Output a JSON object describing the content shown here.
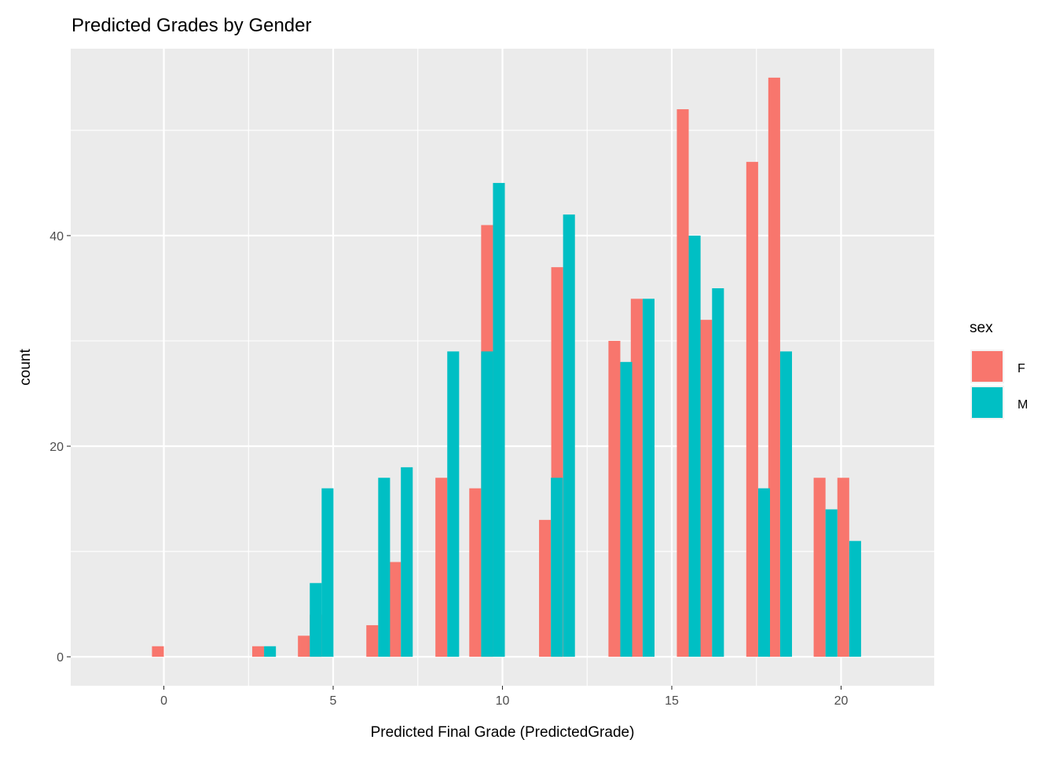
{
  "chart_data": {
    "type": "bar",
    "title": "Predicted Grades by Gender",
    "xlabel": "Predicted Final Grade (PredictedGrade)",
    "ylabel": "count",
    "xlim": [
      -2.75,
      22.75
    ],
    "ylim": [
      -2.75,
      57.75
    ],
    "x_ticks": [
      0,
      5,
      10,
      15,
      20
    ],
    "y_ticks": [
      0,
      20,
      40
    ],
    "x_tick_labels": [
      "0",
      "5",
      "10",
      "15",
      "20"
    ],
    "y_tick_labels": [
      "0",
      "20",
      "40"
    ],
    "x_minor_ticks": [
      2.5,
      7.5,
      12.5,
      17.5
    ],
    "y_minor_ticks": [
      10,
      30,
      50
    ],
    "grid": true,
    "legend": {
      "title": "sex",
      "position": "right",
      "entries": [
        {
          "label": "F",
          "color": "#F8766D"
        },
        {
          "label": "M",
          "color": "#00BFC4"
        }
      ]
    },
    "bin_centers": [
      0,
      2.96,
      4.31,
      4.66,
      6.33,
      7.0,
      8.37,
      9.37,
      9.72,
      11.43,
      11.79,
      13.48,
      14.14,
      15.5,
      16.19,
      17.55,
      18.2,
      19.54,
      20.24
    ],
    "series": [
      {
        "name": "F",
        "color": "#F8766D",
        "values": [
          1,
          1,
          2,
          4,
          3,
          9,
          17,
          16,
          41,
          13,
          37,
          30,
          34,
          52,
          32,
          47,
          55,
          17,
          17
        ]
      },
      {
        "name": "M",
        "color": "#00BFC4",
        "values": [
          0,
          1,
          7,
          16,
          17,
          18,
          29,
          29,
          45,
          17,
          42,
          28,
          34,
          40,
          35,
          16,
          29,
          14,
          11
        ]
      }
    ]
  },
  "colors": {
    "panel_background": "#EBEBEB",
    "grid_line": "#FFFFFF",
    "text_dark": "#000000",
    "tick_text": "#4D4D4D",
    "tick_mark": "#333333"
  }
}
